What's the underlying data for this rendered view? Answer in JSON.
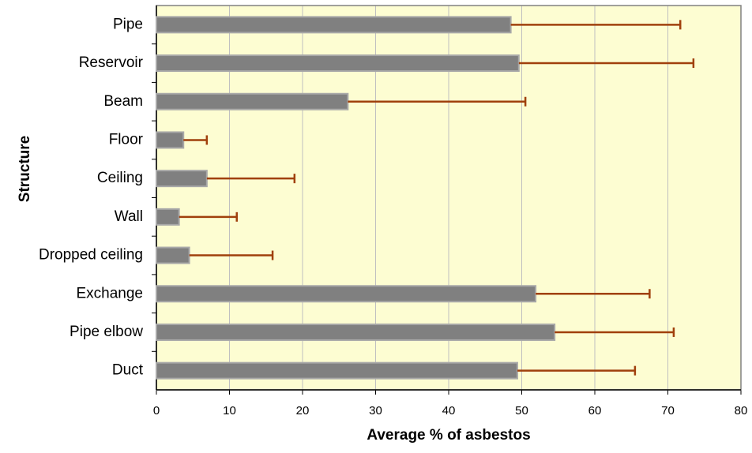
{
  "chart_data": {
    "type": "bar",
    "orientation": "horizontal",
    "categories": [
      "Pipe",
      "Reservoir",
      "Beam",
      "Floor",
      "Ceiling",
      "Wall",
      "Dropped ceiling",
      "Exchange",
      "Pipe elbow",
      "Duct"
    ],
    "values": [
      48.5,
      49.6,
      26.2,
      3.7,
      6.9,
      3.1,
      4.5,
      51.9,
      54.5,
      49.4
    ],
    "errors": [
      23.2,
      23.9,
      24.3,
      3.2,
      12.0,
      7.9,
      11.4,
      15.6,
      16.3,
      16.1
    ],
    "color": "#808080",
    "error_color": "#a0400c",
    "plot_background": "#fdfdd2",
    "x_label": "Average % of asbestos",
    "y_label": "Structure",
    "xlim": [
      0,
      80
    ],
    "xticks": [
      0,
      10,
      20,
      30,
      40,
      50,
      60,
      70,
      80
    ],
    "grid": true
  }
}
